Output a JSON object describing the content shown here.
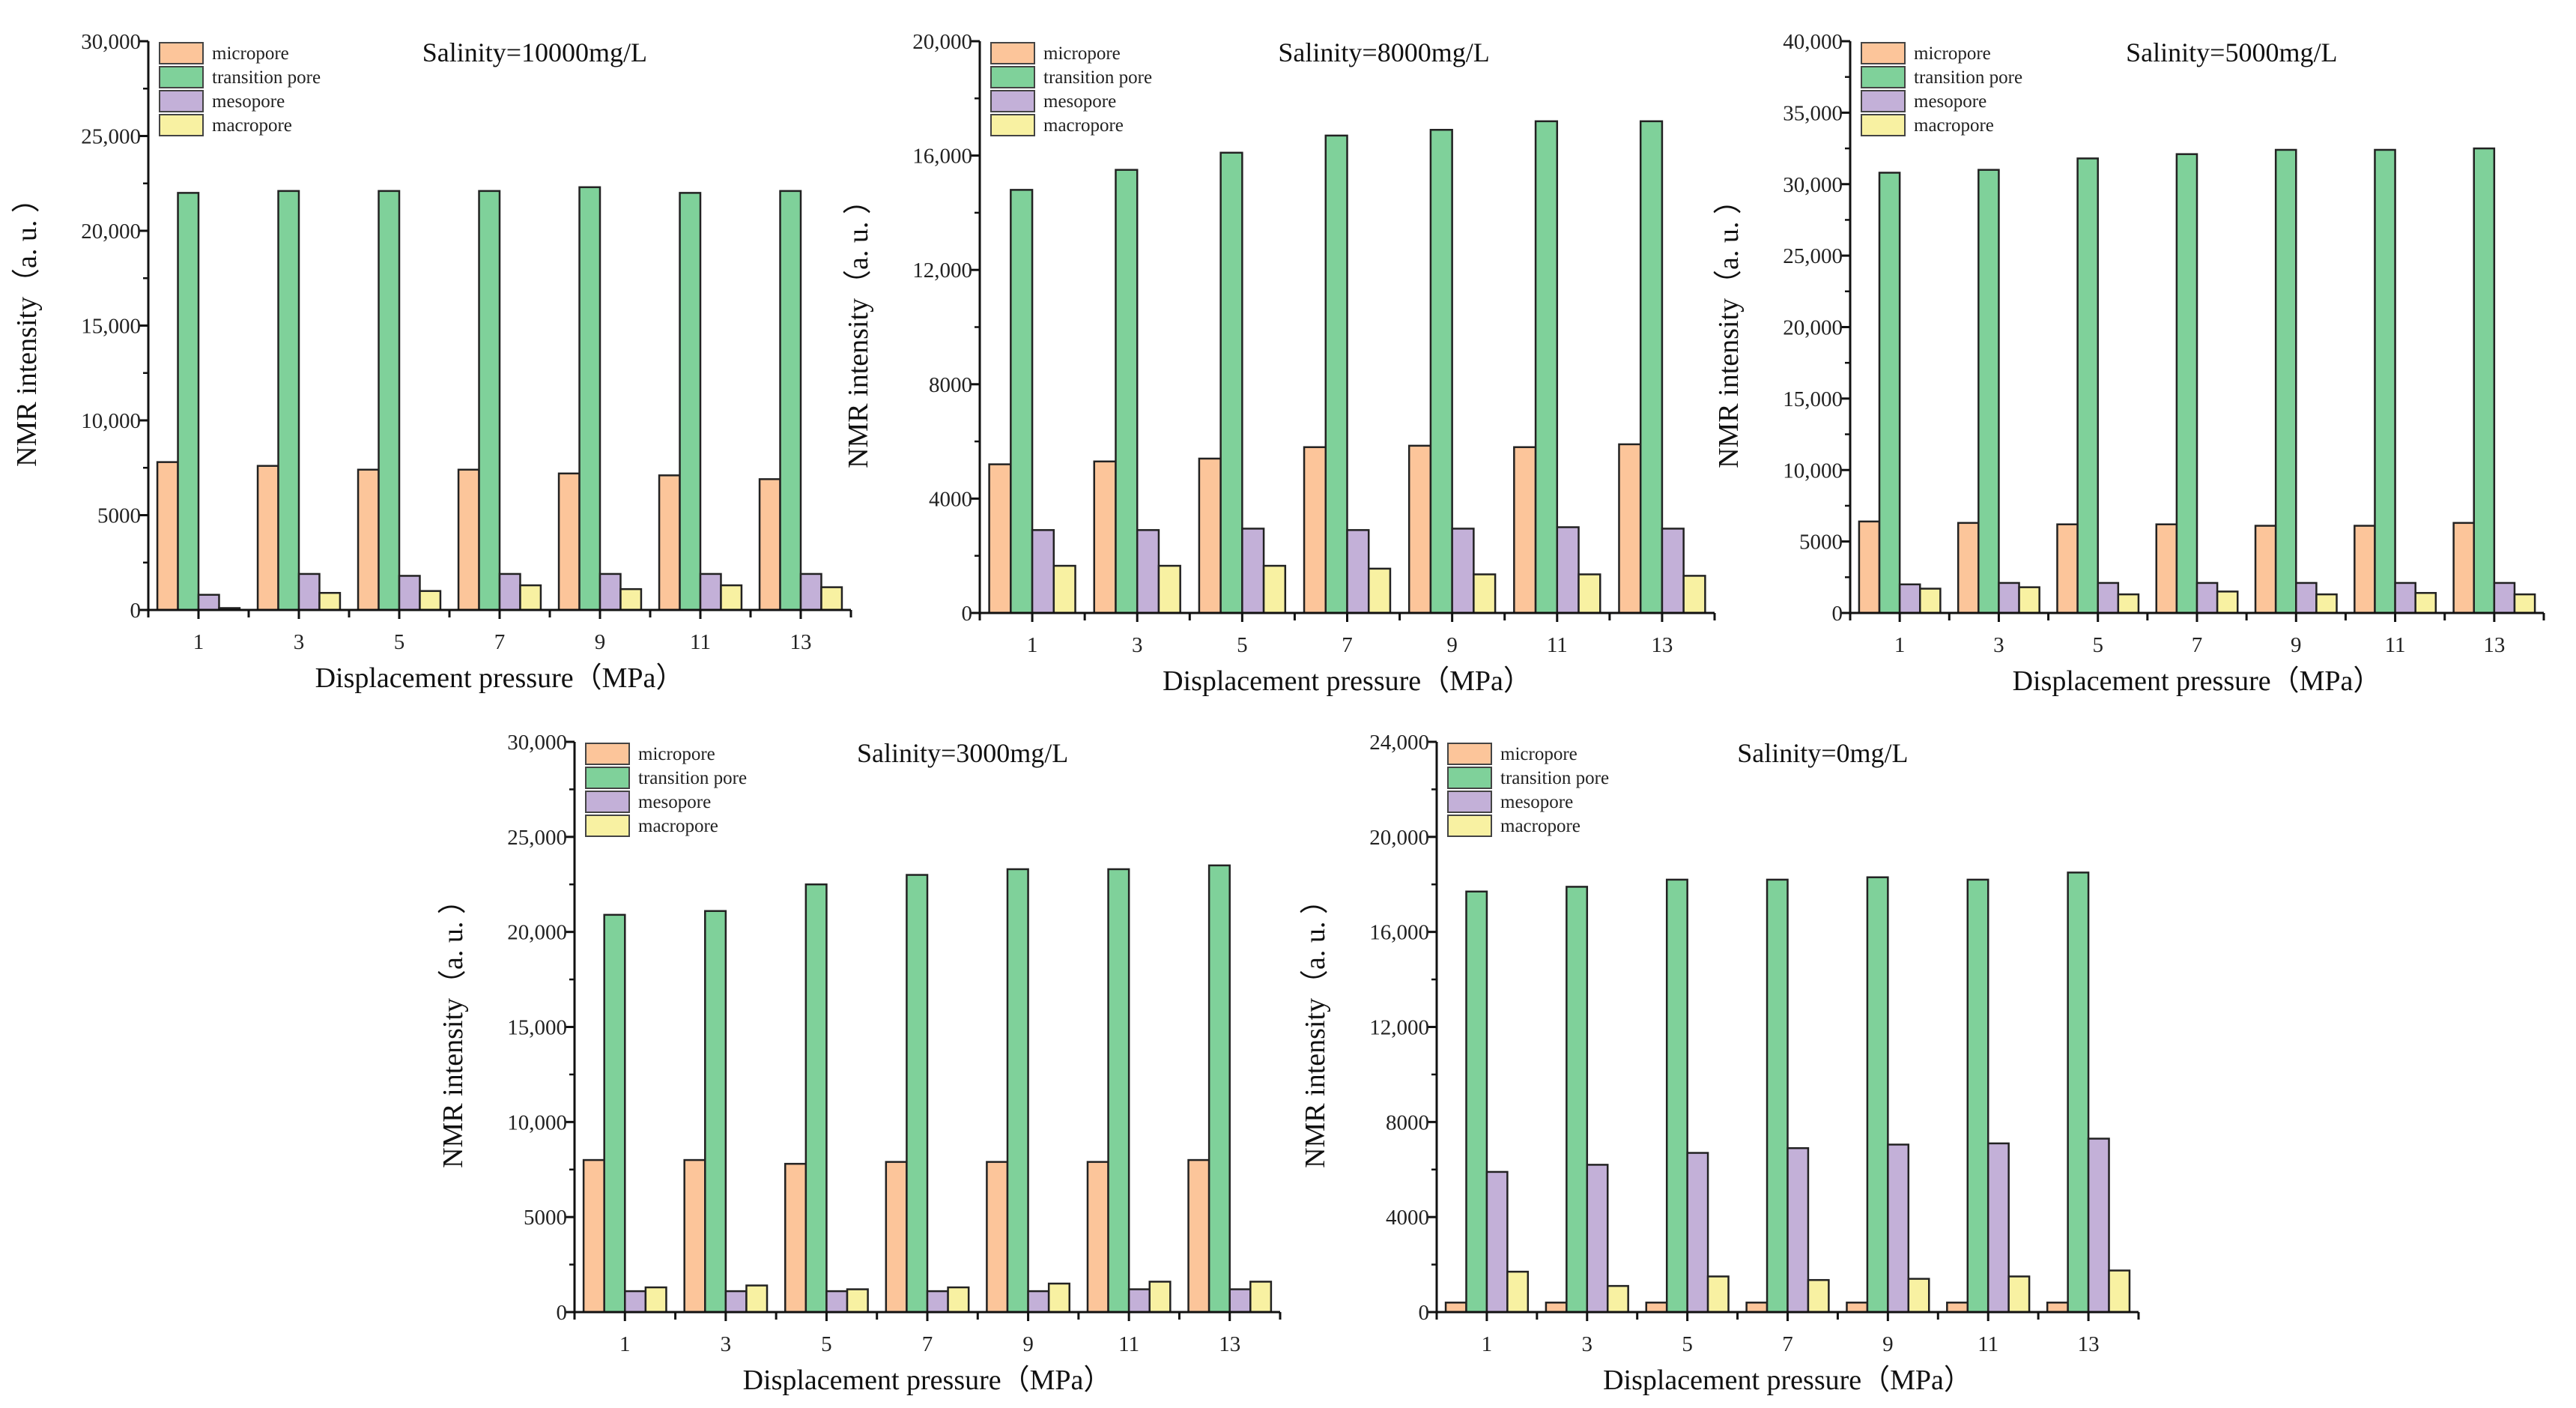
{
  "colors": {
    "micropore": "#fcc59a",
    "transition pore": "#7fd19a",
    "mesopore": "#c3b0d8",
    "macropore": "#f8f1a2"
  },
  "chart_data": [
    {
      "type": "bar",
      "title": "Salinity=10000mg/L",
      "xlabel": "Displacement pressure（MPa）",
      "ylabel": "NMR intensity（a. u. ）",
      "categories": [
        "1",
        "3",
        "5",
        "7",
        "9",
        "11",
        "13"
      ],
      "ylim": [
        0,
        30000
      ],
      "yticks": [
        0,
        5000,
        10000,
        15000,
        20000,
        25000,
        30000
      ],
      "ytick_labels": [
        "0",
        "5000",
        "10,000",
        "15,000",
        "20,000",
        "25,000",
        "30,000"
      ],
      "legend_position": "top-left",
      "series": [
        {
          "name": "micropore",
          "values": [
            7800,
            7600,
            7400,
            7400,
            7200,
            7100,
            6900
          ]
        },
        {
          "name": "transition pore",
          "values": [
            22000,
            22100,
            22100,
            22100,
            22300,
            22000,
            22100
          ]
        },
        {
          "name": "mesopore",
          "values": [
            800,
            1900,
            1800,
            1900,
            1900,
            1900,
            1900
          ]
        },
        {
          "name": "macropore",
          "values": [
            100,
            900,
            1000,
            1300,
            1100,
            1300,
            1200
          ]
        }
      ]
    },
    {
      "type": "bar",
      "title": "Salinity=8000mg/L",
      "xlabel": "Displacement pressure（MPa）",
      "ylabel": "NMR intensity（a. u. ）",
      "categories": [
        "1",
        "3",
        "5",
        "7",
        "9",
        "11",
        "13"
      ],
      "ylim": [
        0,
        20000
      ],
      "yticks": [
        0,
        4000,
        8000,
        12000,
        16000,
        20000
      ],
      "ytick_labels": [
        "0",
        "4000",
        "8000",
        "12,000",
        "16,000",
        "20,000"
      ],
      "legend_position": "top-left",
      "series": [
        {
          "name": "micropore",
          "values": [
            5200,
            5300,
            5400,
            5800,
            5850,
            5800,
            5900
          ]
        },
        {
          "name": "transition pore",
          "values": [
            14800,
            15500,
            16100,
            16700,
            16900,
            17200,
            17200
          ]
        },
        {
          "name": "mesopore",
          "values": [
            2900,
            2900,
            2950,
            2900,
            2950,
            3000,
            2950
          ]
        },
        {
          "name": "macropore",
          "values": [
            1650,
            1650,
            1650,
            1550,
            1350,
            1350,
            1300
          ]
        }
      ]
    },
    {
      "type": "bar",
      "title": "Salinity=5000mg/L",
      "xlabel": "Displacement pressure（MPa）",
      "ylabel": "NMR intensity（a. u. ）",
      "categories": [
        "1",
        "3",
        "5",
        "7",
        "9",
        "11",
        "13"
      ],
      "ylim": [
        0,
        40000
      ],
      "yticks": [
        0,
        5000,
        10000,
        15000,
        20000,
        25000,
        30000,
        35000,
        40000
      ],
      "ytick_labels": [
        "0",
        "5000",
        "10,000",
        "15,000",
        "20,000",
        "25,000",
        "30,000",
        "35,000",
        "40,000"
      ],
      "legend_position": "top-left",
      "series": [
        {
          "name": "micropore",
          "values": [
            6400,
            6300,
            6200,
            6200,
            6100,
            6100,
            6300
          ]
        },
        {
          "name": "transition pore",
          "values": [
            30800,
            31000,
            31800,
            32100,
            32400,
            32400,
            32500
          ]
        },
        {
          "name": "mesopore",
          "values": [
            2000,
            2100,
            2100,
            2100,
            2100,
            2100,
            2100
          ]
        },
        {
          "name": "macropore",
          "values": [
            1700,
            1800,
            1300,
            1500,
            1300,
            1400,
            1300
          ]
        }
      ]
    },
    {
      "type": "bar",
      "title": "Salinity=3000mg/L",
      "xlabel": "Displacement pressure（MPa）",
      "ylabel": "NMR intensity（a. u. ）",
      "categories": [
        "1",
        "3",
        "5",
        "7",
        "9",
        "11",
        "13"
      ],
      "ylim": [
        0,
        30000
      ],
      "yticks": [
        0,
        5000,
        10000,
        15000,
        20000,
        25000,
        30000
      ],
      "ytick_labels": [
        "0",
        "5000",
        "10,000",
        "15,000",
        "20,000",
        "25,000",
        "30,000"
      ],
      "legend_position": "top-left",
      "series": [
        {
          "name": "micropore",
          "values": [
            8000,
            8000,
            7800,
            7900,
            7900,
            7900,
            8000
          ]
        },
        {
          "name": "transition pore",
          "values": [
            20900,
            21100,
            22500,
            23000,
            23300,
            23300,
            23500
          ]
        },
        {
          "name": "mesopore",
          "values": [
            1100,
            1100,
            1100,
            1100,
            1100,
            1200,
            1200
          ]
        },
        {
          "name": "macropore",
          "values": [
            1300,
            1400,
            1200,
            1300,
            1500,
            1600,
            1600
          ]
        }
      ]
    },
    {
      "type": "bar",
      "title": "Salinity=0mg/L",
      "xlabel": "Displacement pressure（MPa）",
      "ylabel": "NMR intensity（a. u. ）",
      "categories": [
        "1",
        "3",
        "5",
        "7",
        "9",
        "11",
        "13"
      ],
      "ylim": [
        0,
        24000
      ],
      "yticks": [
        0,
        4000,
        8000,
        12000,
        16000,
        20000,
        24000
      ],
      "ytick_labels": [
        "0",
        "4000",
        "8000",
        "12,000",
        "16,000",
        "20,000",
        "24,000"
      ],
      "legend_position": "top-left",
      "series": [
        {
          "name": "micropore",
          "values": [
            400,
            400,
            400,
            400,
            400,
            400,
            400
          ]
        },
        {
          "name": "transition pore",
          "values": [
            17700,
            17900,
            18200,
            18200,
            18300,
            18200,
            18500
          ]
        },
        {
          "name": "mesopore",
          "values": [
            5900,
            6200,
            6700,
            6900,
            7050,
            7100,
            7300
          ]
        },
        {
          "name": "macropore",
          "values": [
            1700,
            1100,
            1500,
            1350,
            1400,
            1500,
            1750
          ]
        }
      ]
    }
  ]
}
